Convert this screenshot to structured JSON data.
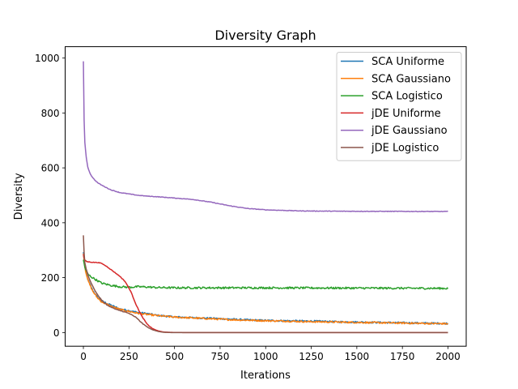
{
  "chart_data": {
    "type": "line",
    "title": "Diversity Graph",
    "xlabel": "Iterations",
    "ylabel": "Diversity",
    "xlim": [
      -100,
      2100
    ],
    "ylim": [
      -49.8,
      1041.5
    ],
    "xticks": [
      0,
      250,
      500,
      750,
      1000,
      1250,
      1500,
      1750,
      2000
    ],
    "yticks": [
      0,
      200,
      400,
      600,
      800,
      1000
    ],
    "grid": false,
    "legend_position": "top-right",
    "series": [
      {
        "name": "SCA Uniforme",
        "color": "#1f77b4",
        "noise": 3,
        "points": [
          [
            0,
            292
          ],
          [
            10,
            232
          ],
          [
            25,
            192
          ],
          [
            50,
            155
          ],
          [
            75,
            130
          ],
          [
            100,
            115
          ],
          [
            150,
            100
          ],
          [
            200,
            86
          ],
          [
            250,
            80
          ],
          [
            300,
            73
          ],
          [
            350,
            69
          ],
          [
            400,
            63
          ],
          [
            450,
            60
          ],
          [
            500,
            57
          ],
          [
            600,
            54
          ],
          [
            700,
            52
          ],
          [
            800,
            49
          ],
          [
            900,
            46
          ],
          [
            1000,
            44
          ],
          [
            1100,
            43
          ],
          [
            1200,
            42
          ],
          [
            1300,
            41
          ],
          [
            1400,
            39
          ],
          [
            1500,
            38
          ],
          [
            1600,
            37
          ],
          [
            1700,
            36
          ],
          [
            1800,
            35
          ],
          [
            1900,
            34
          ],
          [
            2000,
            33
          ]
        ]
      },
      {
        "name": "SCA Gaussiano",
        "color": "#ff7f0e",
        "noise": 3,
        "points": [
          [
            0,
            290
          ],
          [
            10,
            230
          ],
          [
            25,
            190
          ],
          [
            50,
            152
          ],
          [
            75,
            128
          ],
          [
            100,
            112
          ],
          [
            150,
            96
          ],
          [
            200,
            84
          ],
          [
            250,
            77
          ],
          [
            300,
            70
          ],
          [
            350,
            66
          ],
          [
            400,
            62
          ],
          [
            450,
            59
          ],
          [
            500,
            56
          ],
          [
            600,
            53
          ],
          [
            700,
            50
          ],
          [
            800,
            47
          ],
          [
            900,
            45
          ],
          [
            1000,
            43
          ],
          [
            1100,
            42
          ],
          [
            1200,
            40
          ],
          [
            1300,
            39
          ],
          [
            1400,
            38
          ],
          [
            1500,
            37
          ],
          [
            1600,
            36
          ],
          [
            1700,
            35
          ],
          [
            1800,
            34
          ],
          [
            1900,
            33
          ],
          [
            2000,
            32
          ]
        ]
      },
      {
        "name": "SCA Logistico",
        "color": "#2ca02c",
        "noise": 3.5,
        "points": [
          [
            0,
            265
          ],
          [
            10,
            232
          ],
          [
            25,
            212
          ],
          [
            50,
            200
          ],
          [
            75,
            190
          ],
          [
            100,
            180
          ],
          [
            150,
            172
          ],
          [
            200,
            167
          ],
          [
            250,
            165
          ],
          [
            300,
            167
          ],
          [
            350,
            166
          ],
          [
            400,
            164
          ],
          [
            500,
            163
          ],
          [
            700,
            163
          ],
          [
            1000,
            163
          ],
          [
            1500,
            162
          ],
          [
            2000,
            161
          ]
        ]
      },
      {
        "name": "jDE Uniforme",
        "color": "#d62728",
        "noise": 1,
        "points": [
          [
            0,
            285
          ],
          [
            5,
            265
          ],
          [
            20,
            258
          ],
          [
            50,
            256
          ],
          [
            80,
            255
          ],
          [
            100,
            252
          ],
          [
            130,
            240
          ],
          [
            160,
            225
          ],
          [
            200,
            205
          ],
          [
            230,
            185
          ],
          [
            260,
            150
          ],
          [
            290,
            100
          ],
          [
            320,
            60
          ],
          [
            350,
            30
          ],
          [
            380,
            14
          ],
          [
            410,
            6
          ],
          [
            440,
            2
          ],
          [
            480,
            0.5
          ],
          [
            550,
            0
          ],
          [
            2000,
            0
          ]
        ]
      },
      {
        "name": "jDE Gaussiano",
        "color": "#9467bd",
        "noise": 1,
        "points": [
          [
            0,
            988
          ],
          [
            3,
            800
          ],
          [
            7,
            700
          ],
          [
            15,
            640
          ],
          [
            25,
            600
          ],
          [
            40,
            575
          ],
          [
            60,
            557
          ],
          [
            80,
            545
          ],
          [
            100,
            537
          ],
          [
            150,
            520
          ],
          [
            200,
            510
          ],
          [
            250,
            505
          ],
          [
            300,
            500
          ],
          [
            350,
            497
          ],
          [
            400,
            495
          ],
          [
            500,
            490
          ],
          [
            600,
            485
          ],
          [
            700,
            475
          ],
          [
            800,
            462
          ],
          [
            900,
            452
          ],
          [
            1000,
            447
          ],
          [
            1100,
            445
          ],
          [
            1200,
            443
          ],
          [
            1400,
            442
          ],
          [
            2000,
            441
          ]
        ]
      },
      {
        "name": "jDE Logistico",
        "color": "#8c564b",
        "noise": 1,
        "points": [
          [
            0,
            355
          ],
          [
            3,
            300
          ],
          [
            8,
            255
          ],
          [
            15,
            232
          ],
          [
            30,
            200
          ],
          [
            50,
            170
          ],
          [
            75,
            140
          ],
          [
            100,
            118
          ],
          [
            130,
            100
          ],
          [
            160,
            90
          ],
          [
            200,
            80
          ],
          [
            250,
            70
          ],
          [
            290,
            55
          ],
          [
            320,
            35
          ],
          [
            350,
            20
          ],
          [
            380,
            10
          ],
          [
            410,
            4
          ],
          [
            440,
            1
          ],
          [
            480,
            0
          ],
          [
            2000,
            0
          ]
        ]
      }
    ]
  }
}
